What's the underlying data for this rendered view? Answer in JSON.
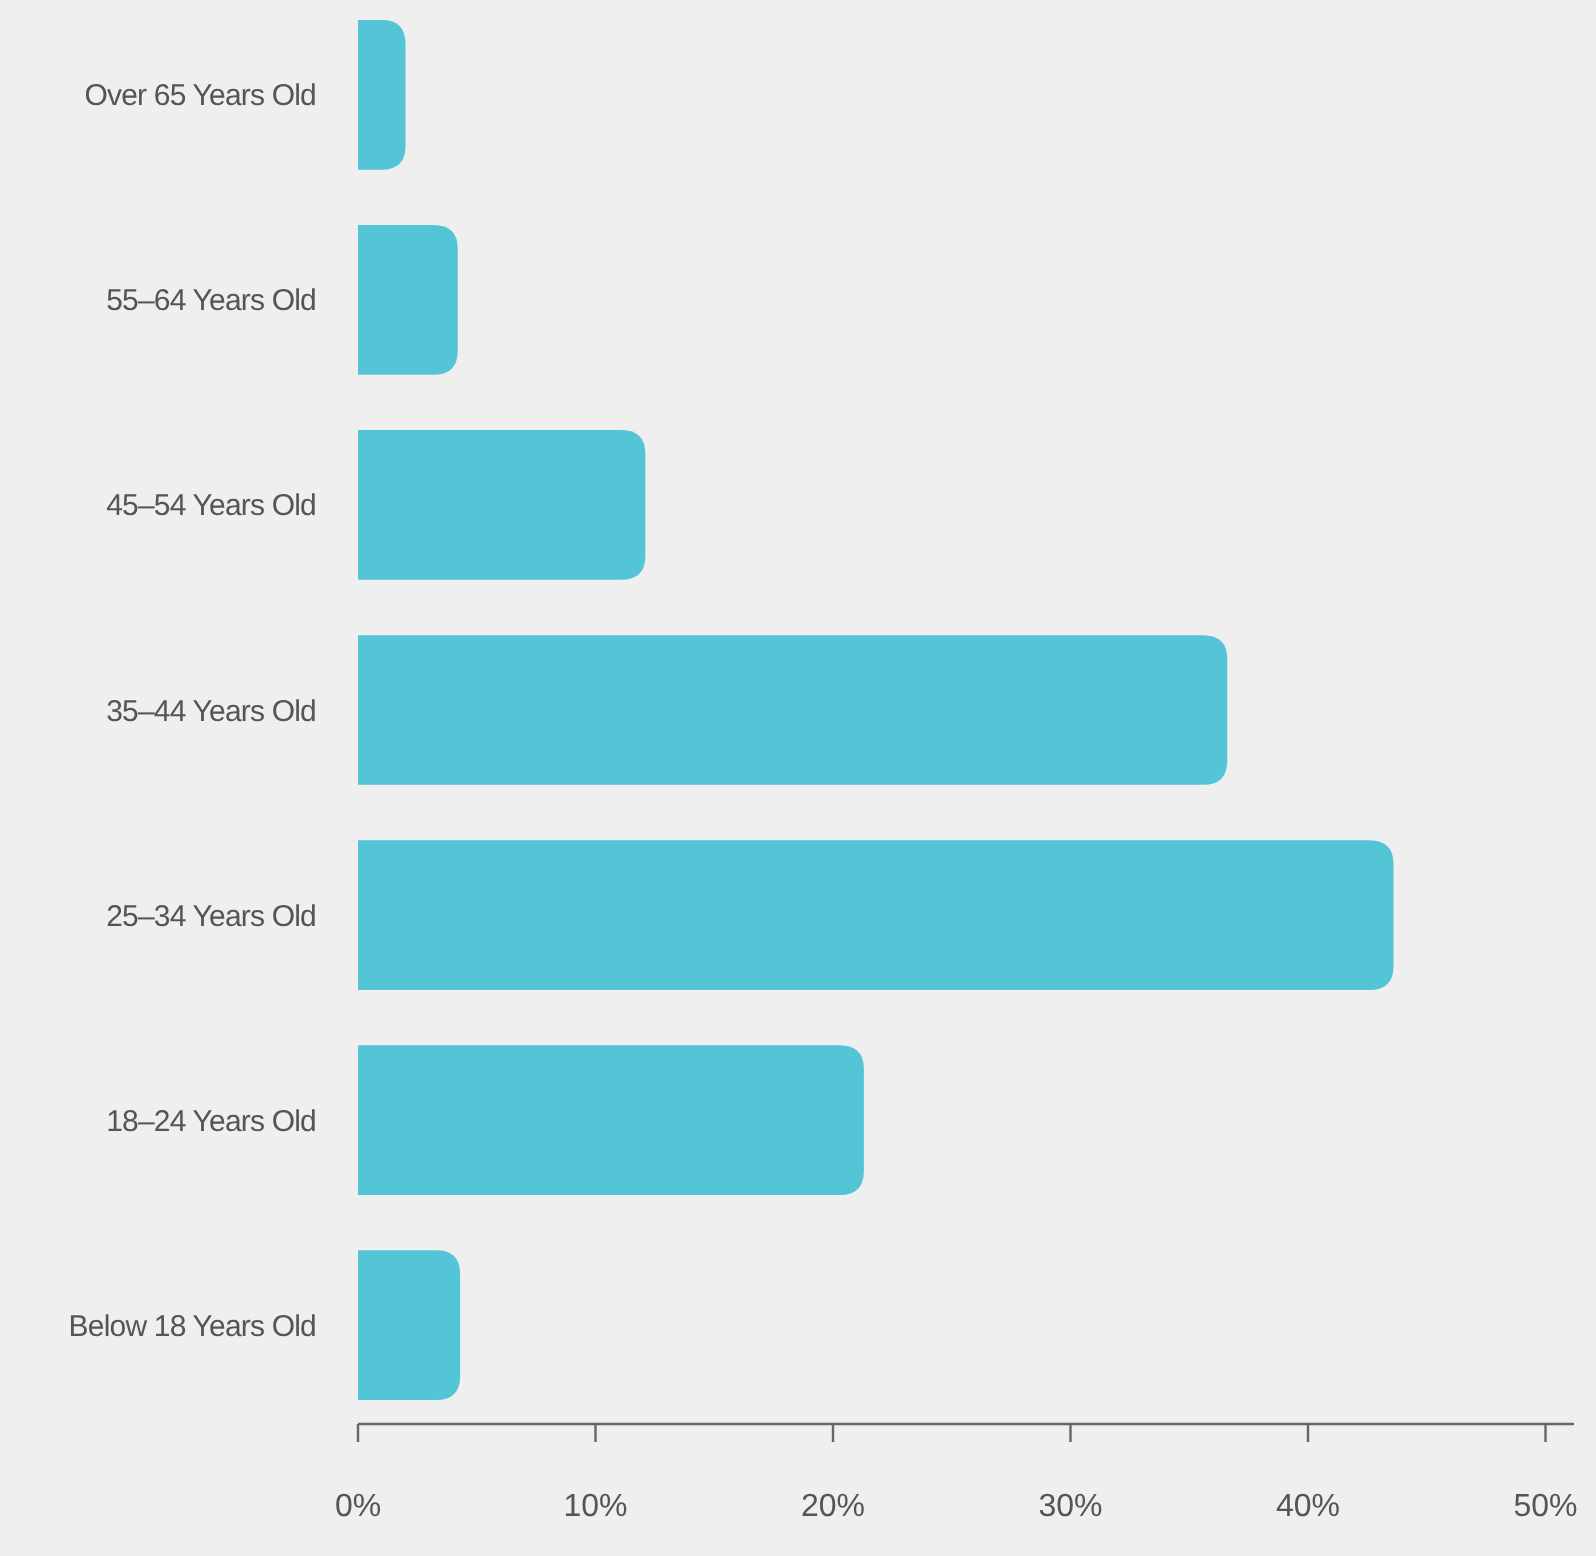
{
  "chart_data": {
    "type": "bar",
    "orientation": "horizontal",
    "categories": [
      "Over 65 Years Old",
      "55–64 Years Old",
      "45–54 Years Old",
      "35–44 Years Old",
      "25–34 Years Old",
      "18–24 Years Old",
      "Below 18 Years Old"
    ],
    "values": [
      2.0,
      4.2,
      12.1,
      36.6,
      43.6,
      21.3,
      4.3
    ],
    "color": "#54c4d7",
    "xlim": [
      0,
      51.2
    ],
    "xticks": [
      {
        "value": 0,
        "label": "0%"
      },
      {
        "value": 10,
        "label": "10%"
      },
      {
        "value": 20,
        "label": "20%"
      },
      {
        "value": 30,
        "label": "30%"
      },
      {
        "value": 40,
        "label": "40%"
      },
      {
        "value": 50,
        "label": "50%"
      }
    ],
    "grid": false
  }
}
